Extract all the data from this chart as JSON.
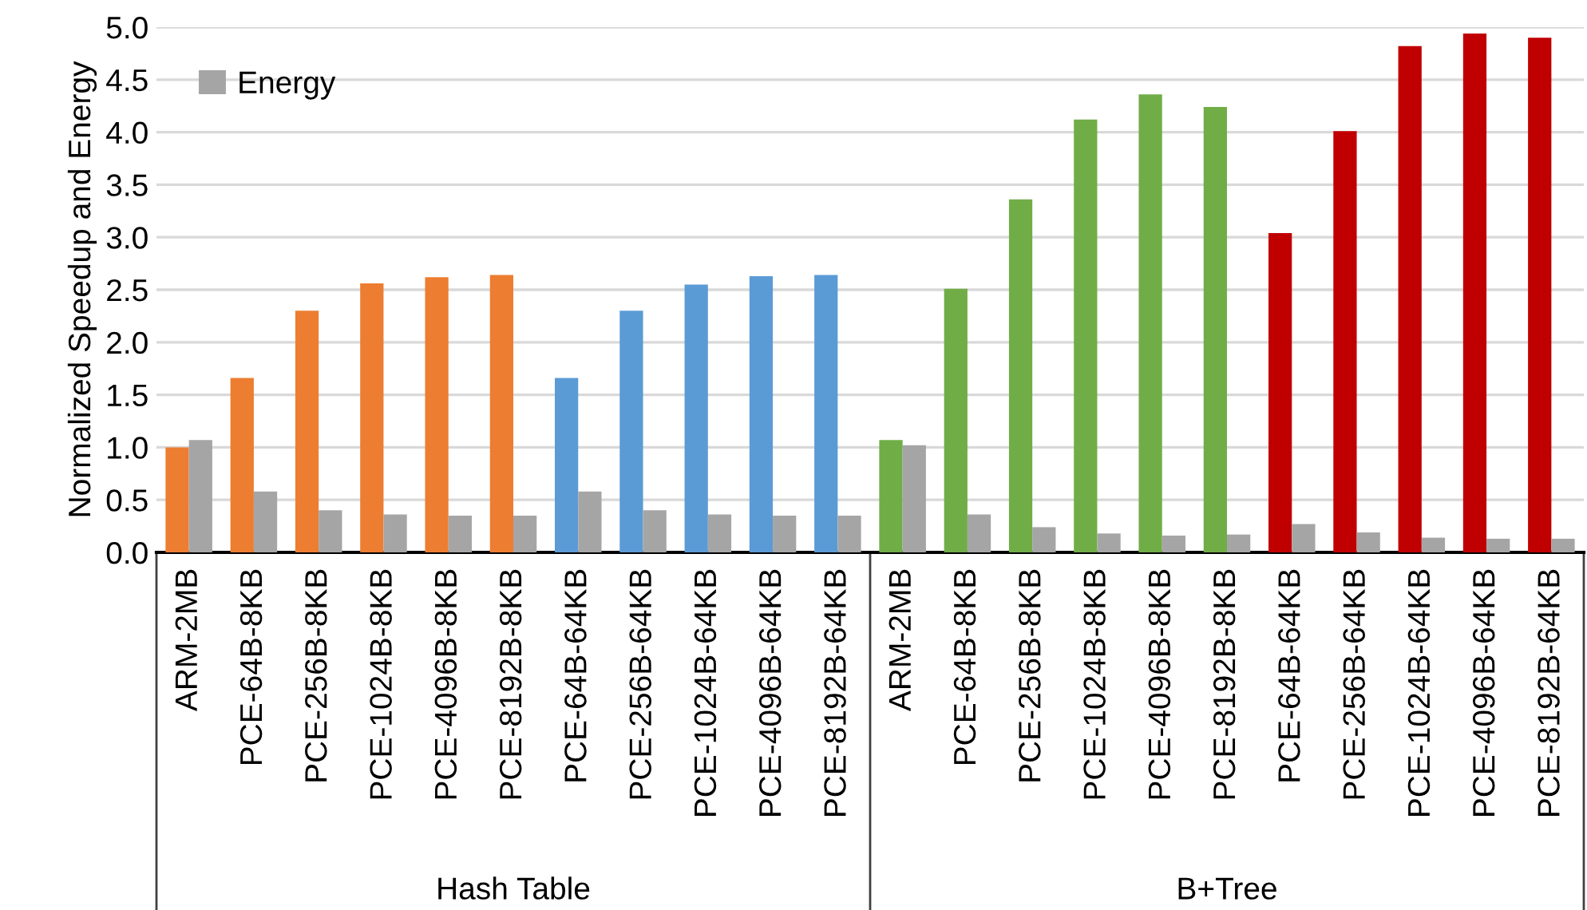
{
  "chart_data": {
    "type": "bar",
    "ylabel": "Normalized Speedup and Energy",
    "categories": [
      "ARM-2MB",
      "PCE-64B-8KB",
      "PCE-256B-8KB",
      "PCE-1024B-8KB",
      "PCE-4096B-8KB",
      "PCE-8192B-8KB",
      "PCE-64B-64KB",
      "PCE-256B-64KB",
      "PCE-1024B-64KB",
      "PCE-4096B-64KB",
      "PCE-8192B-64KB",
      "ARM-2MB",
      "PCE-64B-8KB",
      "PCE-256B-8KB",
      "PCE-1024B-8KB",
      "PCE-4096B-8KB",
      "PCE-8192B-8KB",
      "PCE-64B-64KB",
      "PCE-256B-64KB",
      "PCE-1024B-64KB",
      "PCE-4096B-64KB",
      "PCE-8192B-64KB"
    ],
    "series": [
      {
        "colors": [
          "#ed7d31",
          "#ed7d31",
          "#ed7d31",
          "#ed7d31",
          "#ed7d31",
          "#ed7d31",
          "#5b9bd5",
          "#5b9bd5",
          "#5b9bd5",
          "#5b9bd5",
          "#5b9bd5",
          "#70ad47",
          "#70ad47",
          "#70ad47",
          "#70ad47",
          "#70ad47",
          "#70ad47",
          "#c00000",
          "#c00000",
          "#c00000",
          "#c00000",
          "#c00000"
        ],
        "values": [
          1.0,
          1.66,
          2.3,
          2.56,
          2.62,
          2.64,
          1.66,
          2.3,
          2.55,
          2.63,
          2.64,
          1.07,
          2.51,
          3.36,
          4.12,
          4.36,
          4.24,
          3.04,
          4.01,
          4.82,
          4.94,
          4.9
        ]
      },
      {
        "name": "Energy",
        "color": "#a5a5a5",
        "values": [
          1.07,
          0.58,
          0.4,
          0.36,
          0.35,
          0.35,
          0.58,
          0.4,
          0.36,
          0.35,
          0.35,
          1.02,
          0.36,
          0.24,
          0.18,
          0.16,
          0.17,
          0.27,
          0.19,
          0.14,
          0.13,
          0.13
        ]
      }
    ],
    "annotations": [
      "Hash Table",
      "B+Tree"
    ],
    "ylim": [
      0,
      5.0
    ],
    "yticks": [
      {
        "value": 0,
        "label": "0.0"
      },
      {
        "value": 0.5,
        "label": "0.5"
      },
      {
        "value": 1.0,
        "label": "1.0"
      },
      {
        "value": 1.5,
        "label": "1.5"
      },
      {
        "value": 2.0,
        "label": "2.0"
      },
      {
        "value": 2.5,
        "label": "2.5"
      },
      {
        "value": 3.0,
        "label": "3.0"
      },
      {
        "value": 3.5,
        "label": "3.5"
      },
      {
        "value": 4.0,
        "label": "4.0"
      },
      {
        "value": 4.5,
        "label": "4.5"
      },
      {
        "value": 5.0,
        "label": "5.0"
      }
    ],
    "grid": "y",
    "legend": "top left"
  }
}
